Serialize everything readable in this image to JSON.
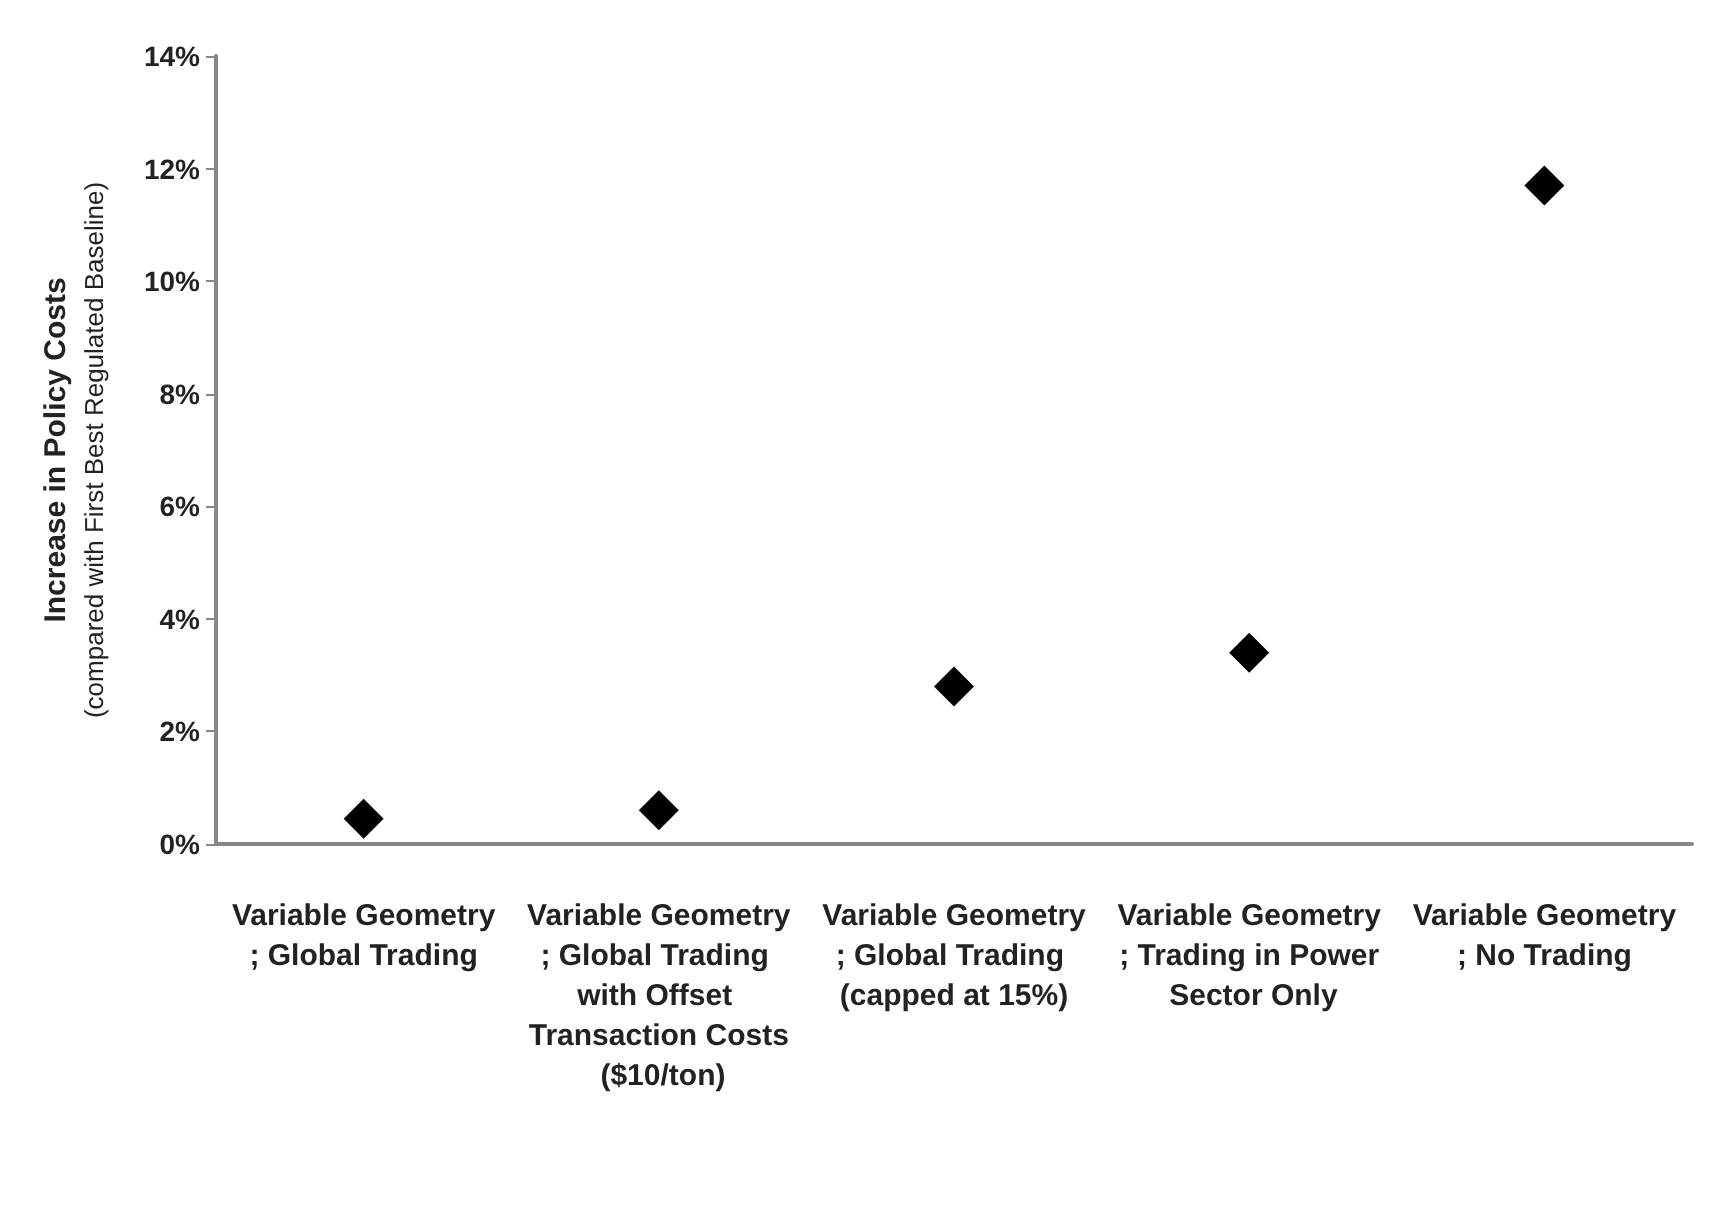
{
  "chart_data": {
    "type": "scatter",
    "ylabel": "Increase in Policy Costs\n(compared with First Best Regulated Baseline)",
    "categories": [
      "Variable Geometry; Global Trading",
      "Variable Geometry; Global Trading with Offset Transaction Costs ($10/ton)",
      "Variable Geometry; Global Trading (capped at 15%)",
      "Variable Geometry; Trading in Power Sector Only",
      "Variable Geometry; No Trading"
    ],
    "values": [
      0.45,
      0.6,
      2.8,
      3.4,
      11.7
    ],
    "color": "#000000",
    "ylim": [
      0,
      14
    ],
    "yticks": [
      {
        "value": 0,
        "label": "0%"
      },
      {
        "value": 2,
        "label": "2%"
      },
      {
        "value": 4,
        "label": "4%"
      },
      {
        "value": 6,
        "label": "6%"
      },
      {
        "value": 8,
        "label": "8%"
      },
      {
        "value": 10,
        "label": "10%"
      },
      {
        "value": 12,
        "label": "12%"
      },
      {
        "value": 14,
        "label": "14%"
      }
    ],
    "grid": false,
    "marker": "diamond"
  }
}
